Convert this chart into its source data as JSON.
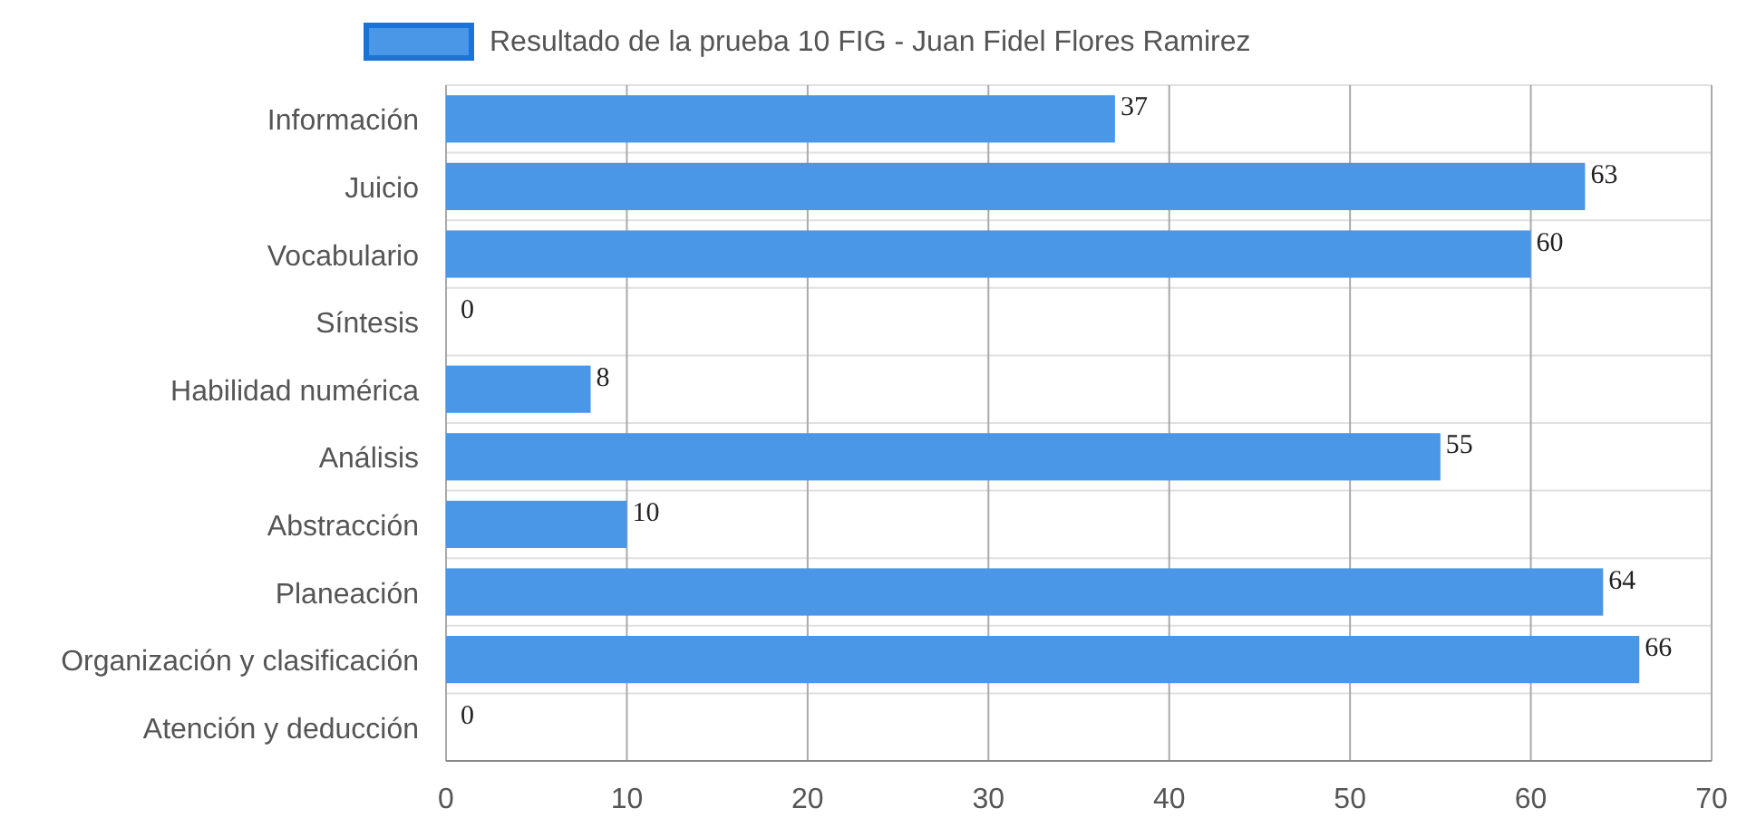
{
  "chart_data": {
    "type": "bar",
    "orientation": "horizontal",
    "categories": [
      "Información",
      "Juicio",
      "Vocabulario",
      "Síntesis",
      "Habilidad numérica",
      "Análisis",
      "Abstracción",
      "Planeación",
      "Organización y clasificación",
      "Atención y deducción"
    ],
    "series": [
      {
        "name": "Resultado de la prueba 10 FIG - Juan Fidel Flores Ramirez",
        "color": "#4a97e8",
        "values": [
          37,
          63,
          60,
          0,
          8,
          55,
          10,
          64,
          66,
          0
        ]
      }
    ],
    "xlim": [
      0,
      70
    ],
    "xticks": [
      0,
      10,
      20,
      30,
      40,
      50,
      60,
      70
    ],
    "grid": true,
    "legend": "top",
    "data_labels": true
  }
}
